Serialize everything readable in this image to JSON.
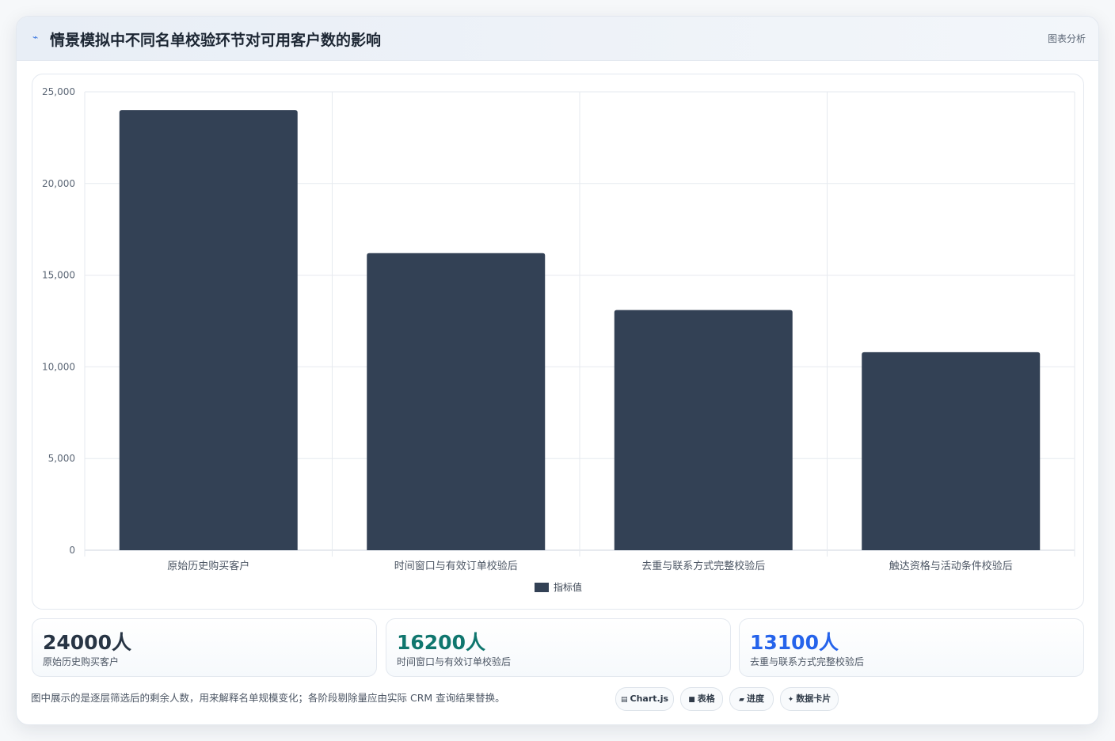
{
  "header": {
    "icon": "trend-line-icon",
    "title": "情景模拟中不同名单校验环节对可用客户数的影响",
    "tag": "图表分析"
  },
  "chart_data": {
    "type": "bar",
    "categories": [
      "原始历史购买客户",
      "时间窗口与有效订单校验后",
      "去重与联系方式完整校验后",
      "触达资格与活动条件校验后"
    ],
    "series": [
      {
        "name": "指标值",
        "values": [
          24000,
          16200,
          13100,
          10800
        ]
      }
    ],
    "ylim": [
      0,
      25000
    ],
    "yticks": [
      "0",
      "5,000",
      "10,000",
      "15,000",
      "20,000",
      "25,000"
    ],
    "ytick_values": [
      0,
      5000,
      10000,
      15000,
      20000,
      25000
    ],
    "grid": true,
    "legend_position": "bottom",
    "bar_color": "#334155"
  },
  "stats": [
    {
      "value": "24000人",
      "label": "原始历史购买客户",
      "color": "#273444"
    },
    {
      "value": "16200人",
      "label": "时间窗口与有效订单校验后",
      "color": "#0f766e"
    },
    {
      "value": "13100人",
      "label": "去重与联系方式完整校验后",
      "color": "#2563eb"
    }
  ],
  "footnote": "图中展示的是逐层筛选后的剩余人数，用来解释名单规模变化；各阶段剔除量应由实际 CRM 查询结果替换。",
  "pills": [
    {
      "icon": "chart-icon",
      "glyph": "▤",
      "label": "Chart.js"
    },
    {
      "icon": "table-icon",
      "glyph": "■",
      "label": "表格"
    },
    {
      "icon": "progress-icon",
      "glyph": "▰",
      "label": "进度"
    },
    {
      "icon": "sparkle-icon",
      "glyph": "✦",
      "label": "数据卡片"
    }
  ]
}
